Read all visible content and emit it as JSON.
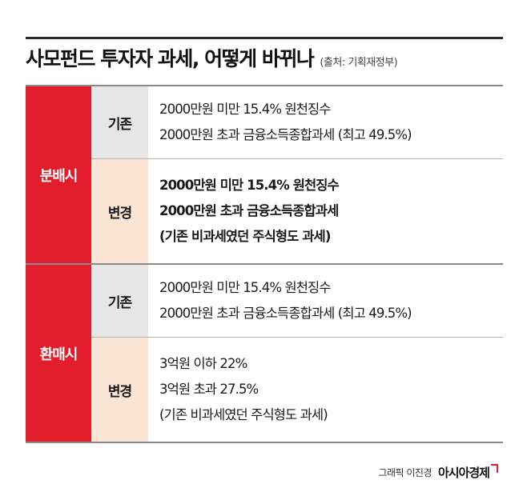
{
  "header": {
    "title": "사모펀드 투자자 과세, 어떻게 바뀌나",
    "source": "(출처: 기획재정부)"
  },
  "colors": {
    "category_bg": "#e11d2b",
    "before_bg": "#e6e6e6",
    "after_bg": "#fbe6d6"
  },
  "table": {
    "groups": [
      {
        "category": "분배시",
        "rows": [
          {
            "label": "기존",
            "lines": [
              "2000만원 미만 15.4% 원천징수",
              "2000만원 초과 금융소득종합과세 (최고 49.5%)"
            ]
          },
          {
            "label": "변경",
            "lines": [
              "2000만원 미만 15.4% 원천징수",
              "2000만원 초과 금융소득종합과세",
              "(기존 비과세였던 주식형도 과세)"
            ]
          }
        ]
      },
      {
        "category": "환매시",
        "rows": [
          {
            "label": "기존",
            "lines": [
              "2000만원 미만 15.4% 원천징수",
              "2000만원 초과 금융소득종합과세 (최고 49.5%)"
            ]
          },
          {
            "label": "변경",
            "lines": [
              "3억원 이하 22%",
              "3억원 초과 27.5%",
              "(기존 비과세였던 주식형도 과세)"
            ]
          }
        ]
      }
    ]
  },
  "footer": {
    "credit": "그래픽 이진경",
    "brand": "아시아경제",
    "brand_icon": "brand-mark-icon"
  }
}
